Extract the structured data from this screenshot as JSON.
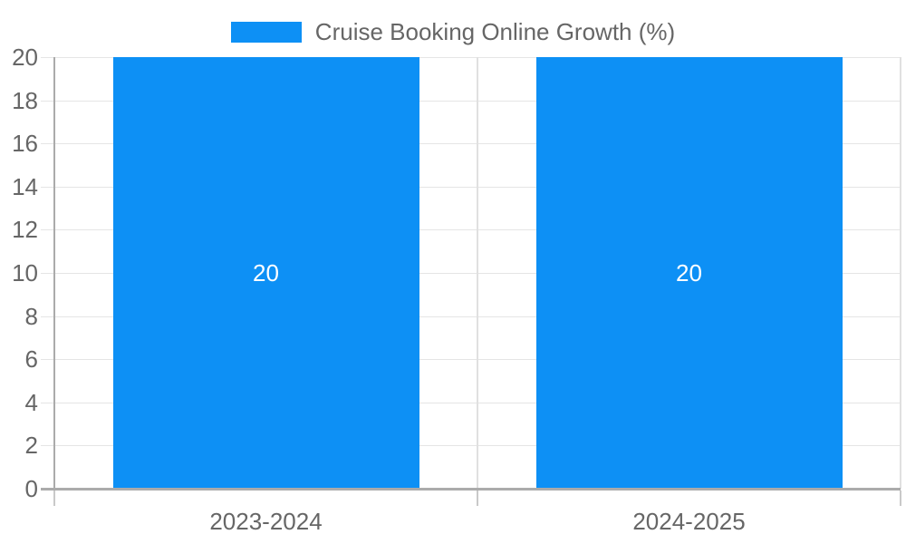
{
  "chart_data": {
    "type": "bar",
    "title": "Cruise Booking Online Growth (%)",
    "legend": {
      "position": "top",
      "label": "Cruise Booking Online Growth (%)"
    },
    "categories": [
      "2023-2024",
      "2024-2025"
    ],
    "series": [
      {
        "name": "Cruise Booking Online Growth (%)",
        "values": [
          20,
          20
        ]
      }
    ],
    "data_labels": [
      "20",
      "20"
    ],
    "xlabel": "",
    "ylabel": "",
    "ylim": [
      0,
      20
    ],
    "yticks": [
      0,
      2,
      4,
      6,
      8,
      10,
      12,
      14,
      16,
      18,
      20
    ],
    "grid": true,
    "colors": {
      "bar": "#0d90f5",
      "grid": "#e5e5e5",
      "boundary": "#e0e0e0",
      "axis": "#ababab",
      "tick_below": "#c9c9c9",
      "text": "#666666",
      "bar_label": "#ffffff",
      "background": "#ffffff"
    }
  }
}
